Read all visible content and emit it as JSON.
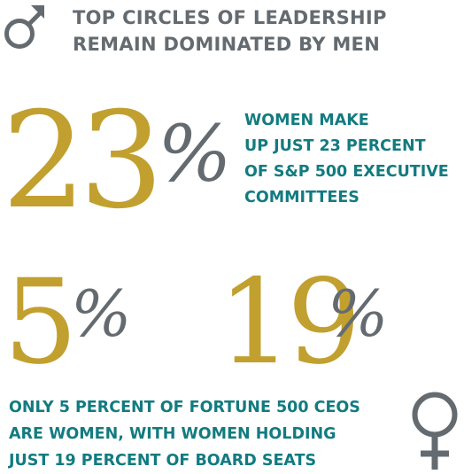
{
  "header": {
    "icon": "male-symbol-icon",
    "lines": [
      "TOP CIRCLES OF LEADERSHIP",
      "REMAIN DOMINATED BY MEN"
    ]
  },
  "stat_executive": {
    "value": "23",
    "unit": "%",
    "lines": [
      "WOMEN MAKE",
      "UP JUST 23 PERCENT",
      "OF S&P 500 EXECUTIVE",
      "COMMITTEES"
    ]
  },
  "stat_ceo": {
    "value": "5",
    "unit": "%"
  },
  "stat_board": {
    "value": "19",
    "unit": "%"
  },
  "footer": {
    "icon": "female-symbol-icon",
    "lines": [
      "ONLY 5 PERCENT OF FORTUNE 500 CEOS",
      "ARE WOMEN, WITH WOMEN HOLDING",
      "JUST 19 PERCENT OF BOARD SEATS"
    ]
  },
  "colors": {
    "gold": "#c2a02f",
    "grey": "#646b70",
    "teal": "#127b80"
  }
}
